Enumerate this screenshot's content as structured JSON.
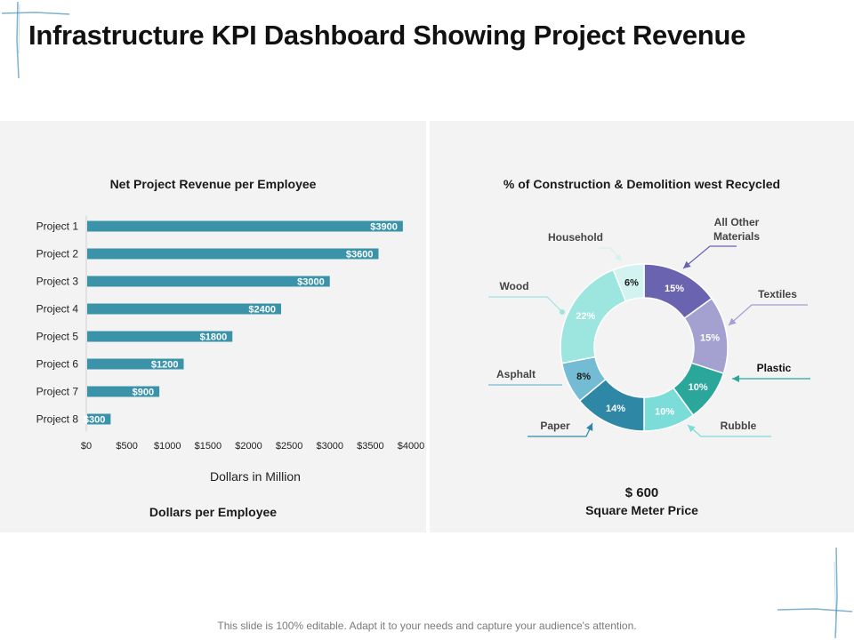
{
  "title": "Infrastructure KPI Dashboard Showing Project Revenue",
  "footer": "This slide is 100% editable. Adapt it to your needs and capture your audience's attention.",
  "colors": {
    "bar": "#3a93a9",
    "panel_bg": "#f3f3f4",
    "accent_line": "#2f7a9a"
  },
  "left_panel": {
    "axis_title": "Dollars in Million",
    "bottom_caption": "Dollars per Employee"
  },
  "right_panel": {
    "price_value": "$ 600",
    "price_caption": "Square Meter Price"
  },
  "chart_data": [
    {
      "type": "bar",
      "orientation": "horizontal",
      "title": "Net Project Revenue per Employee",
      "xlabel": "Dollars in Million",
      "categories": [
        "Project 1",
        "Project 2",
        "Project 3",
        "Project 4",
        "Project 5",
        "Project 6",
        "Project 7",
        "Project 8"
      ],
      "values": [
        3900,
        3600,
        3000,
        2400,
        1800,
        1200,
        900,
        300
      ],
      "value_labels": [
        "$3900",
        "$3600",
        "$3000",
        "$2400",
        "$1800",
        "$1200",
        "$900",
        "$300"
      ],
      "xlim": [
        0,
        4000
      ],
      "ticks": [
        0,
        500,
        1000,
        1500,
        2000,
        2500,
        3000,
        3500,
        4000
      ],
      "tick_labels": [
        "$0",
        "$500",
        "$1000",
        "$1500",
        "$2000",
        "$2500",
        "$3000",
        "$3500",
        "$4000"
      ]
    },
    {
      "type": "pie",
      "donut": true,
      "title": "% of Construction & Demolition west Recycled",
      "slices": [
        {
          "name": "All Other Materials",
          "value": 15,
          "label": "15%",
          "color": "#6a63b0",
          "label_color": "#ffffff"
        },
        {
          "name": "Textiles",
          "value": 15,
          "label": "15%",
          "color": "#a4a0d0",
          "label_color": "#ffffff"
        },
        {
          "name": "Plastic",
          "value": 10,
          "label": "10%",
          "color": "#2ba69b",
          "label_color": "#ffffff"
        },
        {
          "name": "Rubble",
          "value": 10,
          "label": "10%",
          "color": "#7cdcd8",
          "label_color": "#ffffff"
        },
        {
          "name": "Paper",
          "value": 14,
          "label": "14%",
          "color": "#2f87a6",
          "label_color": "#ffffff"
        },
        {
          "name": "Asphalt",
          "value": 8,
          "label": "8%",
          "color": "#73bcd3",
          "label_color": "#1a1a1a"
        },
        {
          "name": "Wood",
          "value": 22,
          "label": "22%",
          "color": "#9ce6df",
          "label_color": "#ffffff"
        },
        {
          "name": "Household",
          "value": 6,
          "label": "6%",
          "color": "#d3f3f0",
          "label_color": "#1a1a1a"
        }
      ]
    }
  ]
}
